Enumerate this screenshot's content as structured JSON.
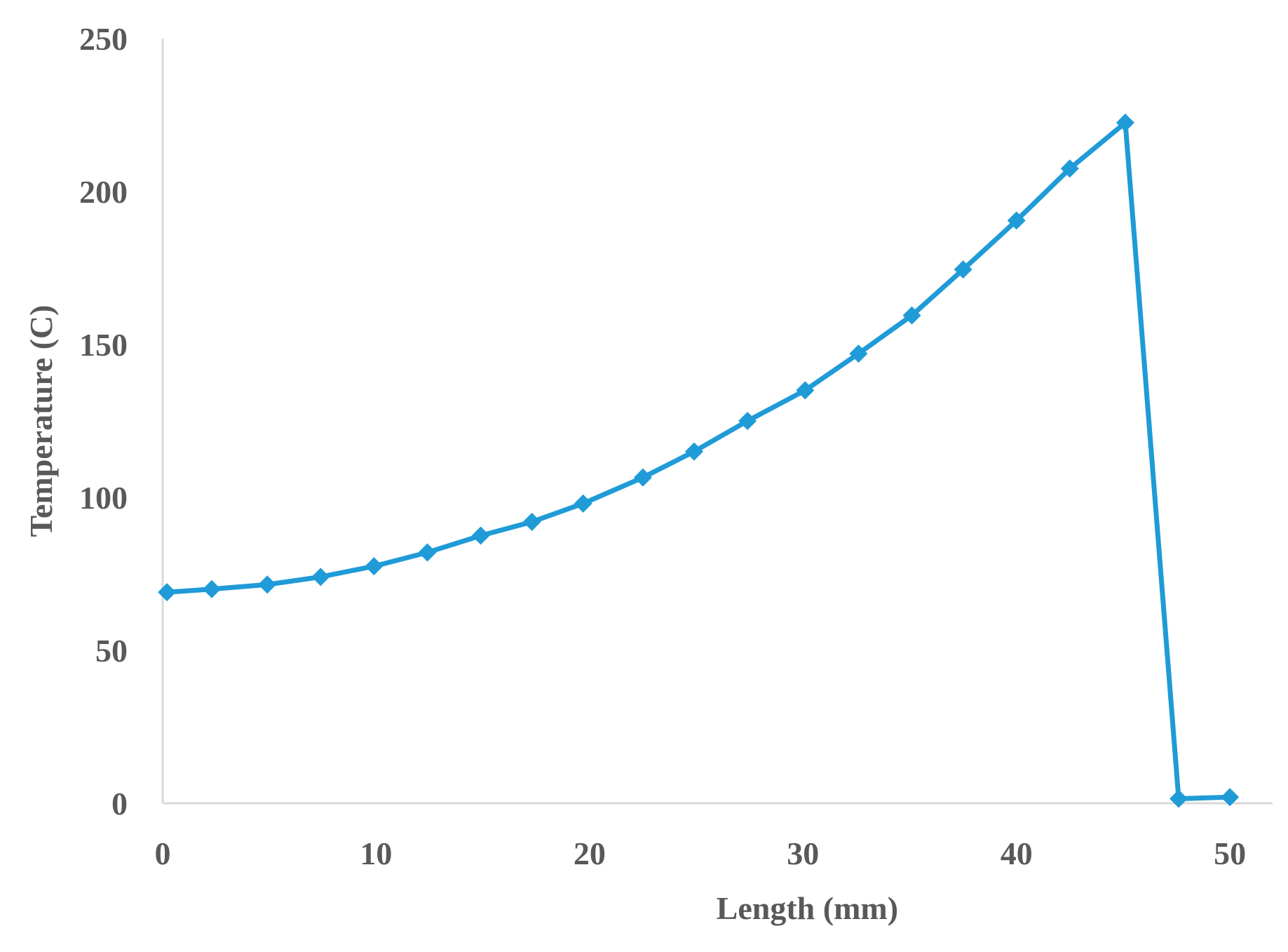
{
  "chart_data": {
    "type": "line",
    "title": "",
    "xlabel": "Length (mm)",
    "ylabel": "Temperature (C)",
    "xlim": [
      0,
      52
    ],
    "ylim": [
      0,
      250
    ],
    "xticks": [
      "0",
      "10",
      "20",
      "30",
      "40",
      "50"
    ],
    "yticks": [
      "0",
      "50",
      "100",
      "150",
      "200",
      "250"
    ],
    "grid": false,
    "legend": "none",
    "series": [
      {
        "color": "#1f9bd7",
        "marker": "diamond",
        "x": [
          0.2,
          2.3,
          4.9,
          7.4,
          9.9,
          12.4,
          14.9,
          17.3,
          19.7,
          22.5,
          24.9,
          27.4,
          30.1,
          32.6,
          35.1,
          37.5,
          40.0,
          42.5,
          45.1,
          47.6,
          50.0
        ],
        "y": [
          69,
          70,
          71.5,
          74,
          77.5,
          82,
          87.5,
          92,
          98,
          106.5,
          115,
          125,
          135,
          147,
          159.5,
          174.5,
          190.5,
          207.5,
          222.5,
          1.5,
          2
        ]
      }
    ]
  }
}
